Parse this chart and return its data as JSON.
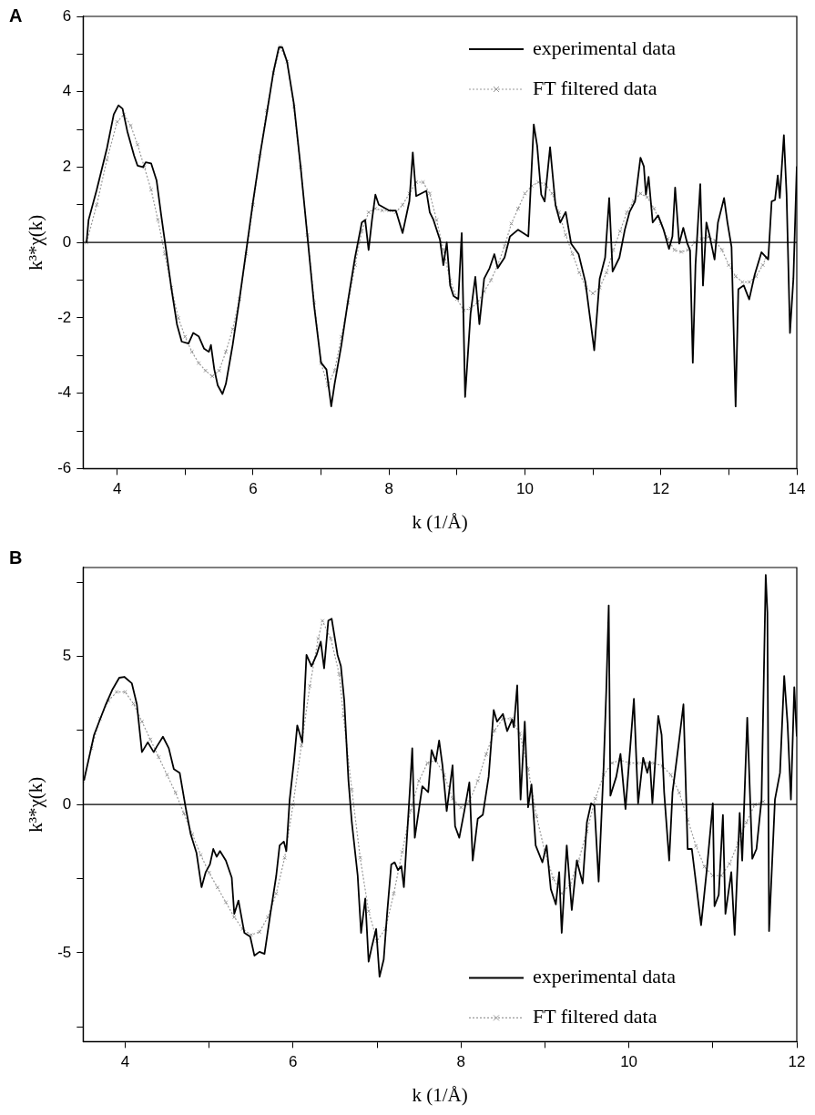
{
  "chart_data": [
    {
      "type": "line",
      "title": "A",
      "xlabel": "k (1/Å)",
      "ylabel": "k³*χ(k)",
      "xlim": [
        3.5,
        14
      ],
      "ylim": [
        -6,
        6
      ],
      "xticks": [
        4,
        {
          "value": 5,
          "label": null
        },
        6,
        {
          "value": 7,
          "label": null
        },
        8,
        {
          "value": 9,
          "label": null
        },
        10,
        {
          "value": 11,
          "label": null
        },
        12,
        {
          "value": 13,
          "label": null
        },
        14
      ],
      "yticks": [
        -6,
        {
          "value": -5,
          "label": null
        },
        -4,
        {
          "value": -3,
          "label": null
        },
        -2,
        {
          "value": -1,
          "label": null
        },
        0,
        {
          "value": 1,
          "label": null
        },
        2,
        {
          "value": 3,
          "label": null
        },
        4,
        {
          "value": 5,
          "label": null
        },
        6
      ],
      "legend": "top right",
      "ref_lines": [
        {
          "axis": "y",
          "value": 0,
          "color": "#000000"
        }
      ],
      "series": [
        {
          "name": "experimental data",
          "color": "#000000",
          "marker": "none",
          "line_style": "solid",
          "x": [
            3.55,
            3.58,
            3.7,
            3.85,
            3.95,
            4.02,
            4.08,
            4.15,
            4.25,
            4.3,
            4.38,
            4.42,
            4.5,
            4.58,
            4.65,
            4.72,
            4.8,
            4.88,
            4.95,
            5.05,
            5.12,
            5.2,
            5.28,
            5.35,
            5.38,
            5.43,
            5.48,
            5.55,
            5.6,
            5.7,
            5.8,
            5.9,
            6.0,
            6.1,
            6.2,
            6.3,
            6.38,
            6.43,
            6.5,
            6.6,
            6.7,
            6.8,
            6.9,
            7.0,
            7.08,
            7.15,
            7.2,
            7.3,
            7.4,
            7.5,
            7.6,
            7.65,
            7.7,
            7.75,
            7.8,
            7.85,
            8.0,
            8.1,
            8.2,
            8.3,
            8.35,
            8.4,
            8.55,
            8.6,
            8.65,
            8.75,
            8.8,
            8.85,
            8.9,
            8.95,
            9.02,
            9.07,
            9.12,
            9.2,
            9.27,
            9.33,
            9.4,
            9.48,
            9.55,
            9.6,
            9.7,
            9.78,
            9.9,
            10.05,
            10.13,
            10.18,
            10.24,
            10.29,
            10.37,
            10.45,
            10.52,
            10.6,
            10.68,
            10.79,
            10.89,
            10.94,
            11.02,
            11.1,
            11.18,
            11.24,
            11.29,
            11.39,
            11.47,
            11.54,
            11.62,
            11.7,
            11.75,
            11.78,
            11.82,
            11.88,
            11.96,
            12.04,
            12.12,
            12.17,
            12.21,
            12.27,
            12.33,
            12.39,
            12.43,
            12.47,
            12.51,
            12.58,
            12.62,
            12.67,
            12.72,
            12.79,
            12.84,
            12.93,
            12.98,
            13.04,
            13.1,
            13.14,
            13.22,
            13.3,
            13.38,
            13.48,
            13.58,
            13.63,
            13.68,
            13.72,
            13.75,
            13.81,
            13.85,
            13.9,
            13.95,
            14.0
          ],
          "values": [
            0.0,
            0.6,
            1.4,
            2.5,
            3.4,
            3.64,
            3.55,
            2.95,
            2.3,
            2.04,
            2.0,
            2.13,
            2.1,
            1.65,
            0.7,
            -0.2,
            -1.24,
            -2.17,
            -2.63,
            -2.68,
            -2.4,
            -2.49,
            -2.82,
            -2.9,
            -2.72,
            -3.37,
            -3.79,
            -4.02,
            -3.75,
            -2.72,
            -1.51,
            -0.21,
            1.09,
            2.3,
            3.4,
            4.53,
            5.18,
            5.18,
            4.8,
            3.69,
            2.0,
            0.16,
            -1.7,
            -3.19,
            -3.37,
            -4.35,
            -3.75,
            -2.72,
            -1.51,
            -0.4,
            0.53,
            0.6,
            -0.2,
            0.6,
            1.27,
            1.0,
            0.85,
            0.85,
            0.25,
            1.1,
            2.39,
            1.23,
            1.37,
            0.8,
            0.62,
            0.07,
            -0.6,
            0.0,
            -1.14,
            -1.42,
            -1.5,
            0.25,
            -4.1,
            -1.89,
            -0.91,
            -2.17,
            -0.96,
            -0.68,
            -0.31,
            -0.68,
            -0.4,
            0.16,
            0.34,
            0.16,
            3.13,
            2.57,
            1.27,
            1.09,
            2.53,
            0.99,
            0.53,
            0.81,
            -0.03,
            -0.31,
            -1.05,
            -1.75,
            -2.86,
            -0.96,
            -0.4,
            1.18,
            -0.77,
            -0.4,
            0.34,
            0.81,
            1.09,
            2.25,
            2.02,
            1.27,
            1.74,
            0.53,
            0.72,
            0.34,
            -0.17,
            0.16,
            1.46,
            -0.03,
            0.39,
            -0.03,
            -0.21,
            -3.19,
            -0.59,
            1.55,
            -1.14,
            0.53,
            0.16,
            -0.45,
            0.53,
            1.18,
            0.53,
            -0.12,
            -4.35,
            -1.24,
            -1.14,
            -1.51,
            -0.86,
            -0.26,
            -0.45,
            1.09,
            1.13,
            1.78,
            1.18,
            2.85,
            1.27,
            -2.4,
            -0.96,
            2.02
          ]
        },
        {
          "name": "FT filtered data",
          "color": "#999999",
          "marker": "cross",
          "line_style": "dotted",
          "x": [
            3.55,
            3.7,
            3.85,
            4.0,
            4.1,
            4.2,
            4.3,
            4.4,
            4.5,
            4.6,
            4.7,
            4.8,
            4.9,
            5.0,
            5.1,
            5.2,
            5.3,
            5.4,
            5.5,
            5.6,
            5.7,
            5.8,
            5.9,
            6.0,
            6.1,
            6.2,
            6.3,
            6.4,
            6.5,
            6.6,
            6.7,
            6.8,
            6.9,
            7.0,
            7.1,
            7.2,
            7.3,
            7.4,
            7.5,
            7.6,
            7.7,
            7.8,
            7.9,
            8.0,
            8.1,
            8.2,
            8.3,
            8.4,
            8.5,
            8.6,
            8.7,
            8.8,
            8.9,
            9.0,
            9.1,
            9.2,
            9.3,
            9.4,
            9.5,
            9.6,
            9.7,
            9.8,
            9.9,
            10.0,
            10.1,
            10.2,
            10.3,
            10.4,
            10.5,
            10.6,
            10.7,
            10.8,
            10.9,
            11.0,
            11.1,
            11.2,
            11.3,
            11.4,
            11.5,
            11.6,
            11.7,
            11.8,
            11.9,
            12.0,
            12.1,
            12.2,
            12.3,
            12.4,
            12.5,
            12.6,
            12.7,
            12.8,
            12.9,
            13.0,
            13.1,
            13.2,
            13.3,
            13.4,
            13.5,
            13.55
          ],
          "values": [
            0,
            1.0,
            2.2,
            3.2,
            3.4,
            3.1,
            2.6,
            2.0,
            1.4,
            0.6,
            -0.3,
            -1.2,
            -2.0,
            -2.5,
            -2.9,
            -3.2,
            -3.4,
            -3.55,
            -3.4,
            -2.9,
            -2.3,
            -1.5,
            -0.3,
            1.0,
            2.3,
            3.5,
            4.5,
            5.2,
            4.8,
            3.6,
            2.0,
            0.2,
            -1.6,
            -3.2,
            -3.8,
            -3.4,
            -2.5,
            -1.6,
            -0.6,
            0.3,
            0.8,
            0.9,
            0.85,
            0.85,
            0.8,
            1.0,
            1.3,
            1.6,
            1.6,
            1.3,
            0.6,
            -0.2,
            -1.0,
            -1.5,
            -1.8,
            -1.75,
            -1.6,
            -1.3,
            -1.0,
            -0.6,
            -0.1,
            0.5,
            0.9,
            1.3,
            1.5,
            1.6,
            1.55,
            1.3,
            0.8,
            0.2,
            -0.3,
            -0.8,
            -1.2,
            -1.35,
            -1.2,
            -0.8,
            -0.2,
            0.3,
            0.8,
            1.1,
            1.3,
            1.2,
            0.9,
            0.5,
            0.1,
            -0.2,
            -0.25,
            -0.2,
            0,
            0.1,
            0.15,
            0.05,
            -0.2,
            -0.6,
            -0.9,
            -1.05,
            -1.05,
            -0.9,
            -0.6,
            -0.4
          ]
        }
      ]
    },
    {
      "type": "line",
      "title": "B",
      "xlabel": "k (1/Å)",
      "ylabel": "k³*χ(k)",
      "xlim": [
        3.5,
        12
      ],
      "ylim": [
        -8,
        8
      ],
      "xticks": [
        4,
        {
          "value": 5,
          "label": null
        },
        6,
        {
          "value": 7,
          "label": null
        },
        8,
        {
          "value": 9,
          "label": null
        },
        10,
        {
          "value": 11,
          "label": null
        },
        12
      ],
      "yticks": [
        {
          "value": -7.5,
          "label": null
        },
        -5,
        {
          "value": -2.5,
          "label": null
        },
        0,
        {
          "value": 2.5,
          "label": null
        },
        5,
        {
          "value": 7.5,
          "label": null
        }
      ],
      "legend": "bottom right",
      "ref_lines": [
        {
          "axis": "y",
          "value": 0,
          "color": "#000000"
        }
      ],
      "series": [
        {
          "name": "experimental data",
          "color": "#000000",
          "marker": "none",
          "line_style": "solid",
          "x": [
            3.51,
            3.63,
            3.77,
            3.85,
            3.93,
            3.99,
            4.08,
            4.14,
            4.2,
            4.27,
            4.34,
            4.38,
            4.45,
            4.52,
            4.58,
            4.65,
            4.72,
            4.78,
            4.85,
            4.91,
            4.96,
            5.01,
            5.05,
            5.09,
            5.13,
            5.2,
            5.27,
            5.3,
            5.35,
            5.42,
            5.49,
            5.54,
            5.6,
            5.66,
            5.73,
            5.8,
            5.84,
            5.89,
            5.92,
            5.96,
            6.01,
            6.05,
            6.11,
            6.16,
            6.22,
            6.28,
            6.33,
            6.37,
            6.42,
            6.46,
            6.53,
            6.57,
            6.61,
            6.66,
            6.7,
            6.77,
            6.81,
            6.86,
            6.9,
            6.94,
            6.99,
            7.03,
            7.08,
            7.12,
            7.17,
            7.21,
            7.25,
            7.29,
            7.32,
            7.39,
            7.42,
            7.45,
            7.54,
            7.61,
            7.65,
            7.7,
            7.74,
            7.78,
            7.83,
            7.9,
            7.93,
            7.98,
            8.04,
            8.1,
            8.14,
            8.2,
            8.26,
            8.33,
            8.39,
            8.43,
            8.5,
            8.55,
            8.61,
            8.63,
            8.67,
            8.71,
            8.76,
            8.8,
            8.84,
            8.89,
            8.97,
            9.02,
            9.07,
            9.13,
            9.17,
            9.2,
            9.26,
            9.32,
            9.38,
            9.45,
            9.5,
            9.55,
            9.59,
            9.64,
            9.7,
            9.73,
            9.76,
            9.78,
            9.85,
            9.9,
            9.96,
            10.06,
            10.11,
            10.17,
            10.22,
            10.25,
            10.28,
            10.35,
            10.39,
            10.42,
            10.48,
            10.52,
            10.59,
            10.65,
            10.7,
            10.75,
            10.8,
            10.86,
            10.93,
            11.0,
            11.02,
            11.07,
            11.12,
            11.15,
            11.22,
            11.26,
            11.32,
            11.35,
            11.41,
            11.47,
            11.52,
            11.58,
            11.63,
            11.65,
            11.67,
            11.74,
            11.8,
            11.85,
            11.89,
            11.93,
            11.97,
            12.0
          ],
          "values": [
            0.81,
            2.35,
            3.38,
            3.89,
            4.28,
            4.31,
            4.09,
            3.38,
            1.77,
            2.1,
            1.77,
            1.97,
            2.29,
            1.9,
            1.2,
            1.07,
            -0.09,
            -0.99,
            -1.63,
            -2.79,
            -2.28,
            -2.02,
            -1.5,
            -1.76,
            -1.57,
            -1.89,
            -2.47,
            -3.69,
            -3.24,
            -4.33,
            -4.46,
            -5.1,
            -4.97,
            -5.04,
            -3.69,
            -2.4,
            -1.38,
            -1.25,
            -1.57,
            0.17,
            1.45,
            2.67,
            2.1,
            5.05,
            4.67,
            5.05,
            5.5,
            4.6,
            6.21,
            6.27,
            5.05,
            4.67,
            3.51,
            0.81,
            -0.6,
            -2.4,
            -4.33,
            -3.17,
            -5.3,
            -4.78,
            -4.2,
            -5.81,
            -5.23,
            -3.69,
            -2.02,
            -1.95,
            -2.21,
            -2.08,
            -2.79,
            0.42,
            1.9,
            -1.12,
            0.62,
            0.42,
            1.84,
            1.45,
            2.16,
            1.32,
            -0.22,
            1.32,
            -0.73,
            -1.12,
            -0.22,
            0.75,
            -1.89,
            -0.48,
            -0.35,
            0.94,
            3.19,
            2.8,
            3.06,
            2.48,
            2.87,
            2.61,
            4.02,
            0.17,
            2.8,
            -0.09,
            0.68,
            -1.38,
            -1.95,
            -1.38,
            -2.85,
            -3.37,
            -2.28,
            -4.33,
            -1.38,
            -3.56,
            -1.89,
            -2.66,
            -0.6,
            0.04,
            -0.03,
            -2.6,
            1.32,
            3.77,
            6.72,
            0.3,
            0.94,
            1.71,
            -0.15,
            3.57,
            0.04,
            1.58,
            1.07,
            1.45,
            0.04,
            2.99,
            2.35,
            0.42,
            -1.89,
            0.42,
            1.97,
            3.38,
            -1.5,
            -1.5,
            -2.66,
            -4.07,
            -2.15,
            0.04,
            -3.43,
            -3.05,
            -0.35,
            -3.69,
            -2.28,
            -4.4,
            -0.28,
            -1.89,
            2.93,
            -1.83,
            -1.5,
            0.17,
            7.75,
            6.47,
            -4.27,
            0.17,
            1.07,
            4.34,
            2.74,
            0.17,
            3.96,
            2.3
          ]
        },
        {
          "name": "FT filtered data",
          "color": "#999999",
          "marker": "cross",
          "line_style": "dotted",
          "x": [
            3.5,
            3.6,
            3.7,
            3.8,
            3.9,
            4.0,
            4.1,
            4.2,
            4.3,
            4.4,
            4.5,
            4.6,
            4.7,
            4.8,
            4.9,
            5.0,
            5.1,
            5.2,
            5.3,
            5.4,
            5.5,
            5.6,
            5.7,
            5.8,
            5.9,
            6.0,
            6.1,
            6.2,
            6.3,
            6.35,
            6.45,
            6.55,
            6.6,
            6.7,
            6.8,
            6.9,
            7.0,
            7.1,
            7.2,
            7.3,
            7.4,
            7.5,
            7.6,
            7.7,
            7.8,
            7.9,
            8.0,
            8.1,
            8.2,
            8.3,
            8.4,
            8.5,
            8.6,
            8.7,
            8.8,
            8.9,
            9.0,
            9.1,
            9.2,
            9.3,
            9.4,
            9.5,
            9.6,
            9.7,
            9.8,
            9.9,
            10.0,
            10.1,
            10.2,
            10.3,
            10.4,
            10.5,
            10.6,
            10.7,
            10.8,
            10.9,
            11.0,
            11.1,
            11.2,
            11.3,
            11.4,
            11.5,
            11.6
          ],
          "values": [
            0.8,
            1.9,
            2.9,
            3.5,
            3.8,
            3.8,
            3.4,
            2.8,
            2.2,
            1.6,
            1.0,
            0.4,
            -0.3,
            -1.0,
            -1.7,
            -2.3,
            -2.8,
            -3.3,
            -3.8,
            -4.2,
            -4.4,
            -4.3,
            -3.8,
            -3.0,
            -1.8,
            0,
            2.0,
            4.0,
            5.6,
            6.2,
            5.6,
            4.4,
            3.0,
            0.5,
            -1.8,
            -3.6,
            -4.6,
            -4.2,
            -3.0,
            -1.6,
            -0.2,
            0.8,
            1.4,
            1.5,
            1.0,
            0.2,
            -0.1,
            0.1,
            0.8,
            1.7,
            2.5,
            2.9,
            2.9,
            2.4,
            1.2,
            -0.4,
            -1.6,
            -2.5,
            -3.0,
            -2.7,
            -1.9,
            -0.9,
            0.2,
            1.0,
            1.4,
            1.5,
            1.4,
            1.4,
            1.4,
            1.4,
            1.3,
            1.0,
            0.4,
            -0.5,
            -1.4,
            -2.1,
            -2.4,
            -2.4,
            -2.0,
            -1.3,
            -0.6,
            0,
            0.1
          ]
        }
      ]
    }
  ]
}
